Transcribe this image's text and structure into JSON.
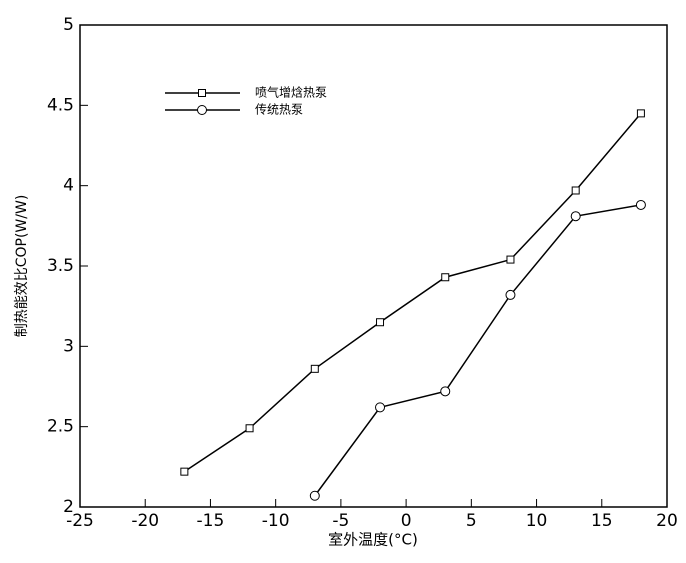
{
  "chart_data": {
    "type": "line",
    "xlabel": "室外温度(°C)",
    "ylabel": "制热能效比COP(W/W)",
    "x": [
      -17,
      -12,
      -7,
      -2,
      3,
      8,
      13,
      18
    ],
    "series": [
      {
        "name": "喷气增焓热泵",
        "color": "#000000",
        "marker": "square",
        "values": [
          2.22,
          2.49,
          2.86,
          3.15,
          3.43,
          3.54,
          3.97,
          4.45
        ]
      },
      {
        "name": "传统热泵",
        "color": "#000000",
        "marker": "circle",
        "values": [
          null,
          null,
          2.07,
          2.62,
          2.72,
          3.32,
          3.81,
          3.88
        ]
      }
    ],
    "xlim": [
      -25,
      20
    ],
    "xticks": [
      -25,
      -20,
      -15,
      -10,
      -5,
      0,
      5,
      10,
      15,
      20
    ],
    "ylim": [
      2,
      5
    ],
    "yticks": [
      2,
      2.5,
      3,
      3.5,
      4,
      4.5,
      5
    ],
    "grid": false,
    "legend": "upper left"
  }
}
